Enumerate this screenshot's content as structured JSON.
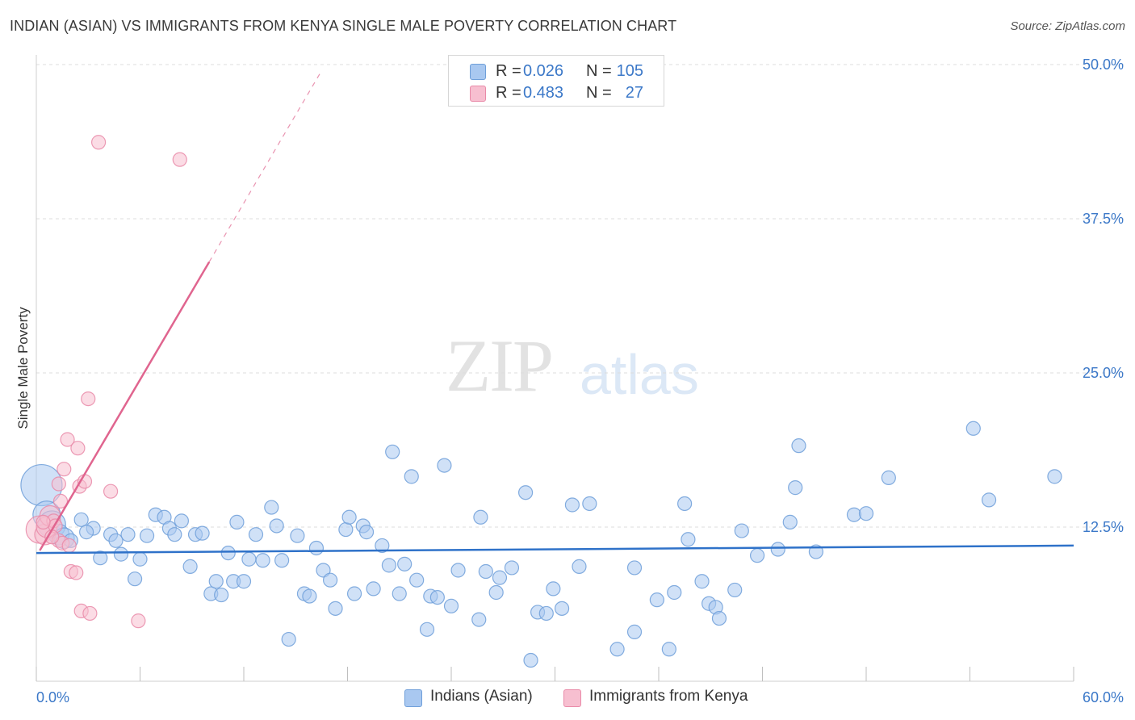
{
  "header": {
    "title": "INDIAN (ASIAN) VS IMMIGRANTS FROM KENYA SINGLE MALE POVERTY CORRELATION CHART",
    "source": "Source: ZipAtlas.com"
  },
  "watermark": {
    "zip": "ZIP",
    "atlas": "atlas"
  },
  "legend": {
    "rows": [
      {
        "r_label": "R =",
        "r_value": "0.026",
        "n_label": "N =",
        "n_value": "105",
        "color": "#a9c8f0",
        "border": "#6f9fd9"
      },
      {
        "r_label": "R =",
        "r_value": "0.483",
        "n_label": "N =",
        "n_value": "27",
        "color": "#f7bfd0",
        "border": "#e98aa8"
      }
    ]
  },
  "bottom_legend": {
    "series1": "Indians (Asian)",
    "series2": "Immigrants from Kenya"
  },
  "colors": {
    "blue_fill": "#a9c8f0",
    "blue_stroke": "#6f9fd9",
    "blue_line": "#2f72c9",
    "pink_fill": "#f7bfd0",
    "pink_stroke": "#e98aa8",
    "pink_line": "#e0658f",
    "grid": "#dcdcdc",
    "tick_label": "#3b78c8"
  },
  "chart_data": {
    "type": "scatter",
    "title": "INDIAN (ASIAN) VS IMMIGRANTS FROM KENYA SINGLE MALE POVERTY CORRELATION CHART",
    "xlabel": "",
    "ylabel": "Single Male Poverty",
    "xlim": [
      0,
      60
    ],
    "ylim": [
      0,
      50
    ],
    "x_tick_labels": [
      "0.0%",
      "60.0%"
    ],
    "y_ticks": [
      12.5,
      25.0,
      37.5,
      50.0
    ],
    "y_tick_labels": [
      "12.5%",
      "25.0%",
      "37.5%",
      "50.0%"
    ],
    "grid": true,
    "series": [
      {
        "name": "Indians (Asian)",
        "trend": {
          "x": [
            0,
            60
          ],
          "y": [
            10.4,
            11.0
          ]
        },
        "points": [
          {
            "x": 0.3,
            "y": 15.9,
            "s": 3
          },
          {
            "x": 0.6,
            "y": 13.5,
            "s": 2
          },
          {
            "x": 0.9,
            "y": 12.7,
            "s": 2
          },
          {
            "x": 1.3,
            "y": 11.9,
            "s": 1.5
          },
          {
            "x": 1.6,
            "y": 11.6,
            "s": 1.5
          },
          {
            "x": 2.0,
            "y": 11.4
          },
          {
            "x": 2.6,
            "y": 13.1
          },
          {
            "x": 3.3,
            "y": 12.4
          },
          {
            "x": 2.9,
            "y": 12.1
          },
          {
            "x": 3.7,
            "y": 10.0
          },
          {
            "x": 4.3,
            "y": 11.9
          },
          {
            "x": 4.6,
            "y": 11.4
          },
          {
            "x": 4.9,
            "y": 10.3
          },
          {
            "x": 5.3,
            "y": 11.9
          },
          {
            "x": 5.7,
            "y": 8.3
          },
          {
            "x": 6.0,
            "y": 9.9
          },
          {
            "x": 6.4,
            "y": 11.8
          },
          {
            "x": 6.9,
            "y": 13.5
          },
          {
            "x": 7.4,
            "y": 13.3
          },
          {
            "x": 7.7,
            "y": 12.4
          },
          {
            "x": 8.0,
            "y": 11.9
          },
          {
            "x": 8.4,
            "y": 13.0
          },
          {
            "x": 8.9,
            "y": 9.3
          },
          {
            "x": 9.2,
            "y": 11.9
          },
          {
            "x": 9.6,
            "y": 12.0
          },
          {
            "x": 10.1,
            "y": 7.1
          },
          {
            "x": 10.4,
            "y": 8.1
          },
          {
            "x": 10.7,
            "y": 7.0
          },
          {
            "x": 11.1,
            "y": 10.4
          },
          {
            "x": 11.4,
            "y": 8.1
          },
          {
            "x": 11.6,
            "y": 12.9
          },
          {
            "x": 12.0,
            "y": 8.1
          },
          {
            "x": 12.3,
            "y": 9.9
          },
          {
            "x": 12.7,
            "y": 11.9
          },
          {
            "x": 13.1,
            "y": 9.8
          },
          {
            "x": 13.6,
            "y": 14.1
          },
          {
            "x": 13.9,
            "y": 12.6
          },
          {
            "x": 14.2,
            "y": 9.8
          },
          {
            "x": 14.6,
            "y": 3.4
          },
          {
            "x": 15.1,
            "y": 11.8
          },
          {
            "x": 15.5,
            "y": 7.1
          },
          {
            "x": 15.8,
            "y": 6.9
          },
          {
            "x": 16.2,
            "y": 10.8
          },
          {
            "x": 16.6,
            "y": 9.0
          },
          {
            "x": 17.0,
            "y": 8.2
          },
          {
            "x": 17.3,
            "y": 5.9
          },
          {
            "x": 17.9,
            "y": 12.3
          },
          {
            "x": 18.1,
            "y": 13.3
          },
          {
            "x": 18.4,
            "y": 7.1
          },
          {
            "x": 18.9,
            "y": 12.6
          },
          {
            "x": 19.1,
            "y": 12.1
          },
          {
            "x": 19.5,
            "y": 7.5
          },
          {
            "x": 20.0,
            "y": 11.0
          },
          {
            "x": 20.4,
            "y": 9.4
          },
          {
            "x": 20.6,
            "y": 18.6
          },
          {
            "x": 21.0,
            "y": 7.1
          },
          {
            "x": 21.3,
            "y": 9.5
          },
          {
            "x": 21.7,
            "y": 16.6
          },
          {
            "x": 22.0,
            "y": 8.2
          },
          {
            "x": 22.6,
            "y": 4.2
          },
          {
            "x": 22.8,
            "y": 6.9
          },
          {
            "x": 23.2,
            "y": 6.8
          },
          {
            "x": 23.6,
            "y": 17.5
          },
          {
            "x": 24.0,
            "y": 6.1
          },
          {
            "x": 24.4,
            "y": 9.0
          },
          {
            "x": 25.6,
            "y": 5.0
          },
          {
            "x": 25.7,
            "y": 13.3
          },
          {
            "x": 26.0,
            "y": 8.9
          },
          {
            "x": 26.6,
            "y": 7.2
          },
          {
            "x": 26.8,
            "y": 8.4
          },
          {
            "x": 27.5,
            "y": 9.2
          },
          {
            "x": 28.3,
            "y": 15.3
          },
          {
            "x": 28.6,
            "y": 1.7
          },
          {
            "x": 29.0,
            "y": 5.6
          },
          {
            "x": 29.5,
            "y": 5.5
          },
          {
            "x": 29.9,
            "y": 7.5
          },
          {
            "x": 30.4,
            "y": 5.9
          },
          {
            "x": 31.0,
            "y": 14.3
          },
          {
            "x": 31.4,
            "y": 9.3
          },
          {
            "x": 32.0,
            "y": 14.4
          },
          {
            "x": 33.6,
            "y": 2.6
          },
          {
            "x": 34.6,
            "y": 9.2
          },
          {
            "x": 34.6,
            "y": 4.0
          },
          {
            "x": 35.9,
            "y": 6.6
          },
          {
            "x": 36.6,
            "y": 2.6
          },
          {
            "x": 36.9,
            "y": 7.2
          },
          {
            "x": 37.5,
            "y": 14.4
          },
          {
            "x": 37.7,
            "y": 11.5
          },
          {
            "x": 38.5,
            "y": 8.1
          },
          {
            "x": 38.9,
            "y": 6.3
          },
          {
            "x": 39.3,
            "y": 6.0
          },
          {
            "x": 39.5,
            "y": 5.1
          },
          {
            "x": 40.4,
            "y": 7.4
          },
          {
            "x": 40.8,
            "y": 12.2
          },
          {
            "x": 41.7,
            "y": 10.2
          },
          {
            "x": 42.9,
            "y": 10.7
          },
          {
            "x": 43.6,
            "y": 12.9
          },
          {
            "x": 43.9,
            "y": 15.7
          },
          {
            "x": 44.1,
            "y": 19.1
          },
          {
            "x": 45.1,
            "y": 10.5
          },
          {
            "x": 47.3,
            "y": 13.5
          },
          {
            "x": 48.0,
            "y": 13.6
          },
          {
            "x": 49.3,
            "y": 16.5
          },
          {
            "x": 54.2,
            "y": 20.5
          },
          {
            "x": 55.1,
            "y": 14.7
          },
          {
            "x": 58.9,
            "y": 16.6
          }
        ]
      },
      {
        "name": "Immigrants from Kenya",
        "trend": {
          "x": [
            0.2,
            10.0
          ],
          "y": [
            10.6,
            34.0
          ]
        },
        "trend_extension": {
          "x": [
            10.0,
            16.5
          ],
          "y": [
            34.0,
            49.5
          ]
        },
        "points": [
          {
            "x": 0.2,
            "y": 12.3,
            "s": 2
          },
          {
            "x": 0.5,
            "y": 11.9,
            "s": 1.5
          },
          {
            "x": 0.6,
            "y": 12.5,
            "s": 1.5
          },
          {
            "x": 0.8,
            "y": 13.4,
            "s": 1.5
          },
          {
            "x": 1.0,
            "y": 13.0
          },
          {
            "x": 1.1,
            "y": 12.6
          },
          {
            "x": 1.3,
            "y": 16.0
          },
          {
            "x": 1.3,
            "y": 11.4
          },
          {
            "x": 1.4,
            "y": 14.6
          },
          {
            "x": 1.5,
            "y": 11.2
          },
          {
            "x": 1.6,
            "y": 17.2
          },
          {
            "x": 1.8,
            "y": 19.6
          },
          {
            "x": 1.9,
            "y": 11.0
          },
          {
            "x": 2.0,
            "y": 8.9
          },
          {
            "x": 2.3,
            "y": 8.8
          },
          {
            "x": 2.4,
            "y": 18.9
          },
          {
            "x": 2.5,
            "y": 15.8
          },
          {
            "x": 2.6,
            "y": 5.7
          },
          {
            "x": 2.8,
            "y": 16.2
          },
          {
            "x": 3.0,
            "y": 22.9
          },
          {
            "x": 3.1,
            "y": 5.5
          },
          {
            "x": 3.6,
            "y": 43.7
          },
          {
            "x": 4.3,
            "y": 15.4
          },
          {
            "x": 5.9,
            "y": 4.9
          },
          {
            "x": 8.3,
            "y": 42.3
          },
          {
            "x": 0.4,
            "y": 12.9
          },
          {
            "x": 0.9,
            "y": 11.7
          }
        ]
      }
    ]
  }
}
